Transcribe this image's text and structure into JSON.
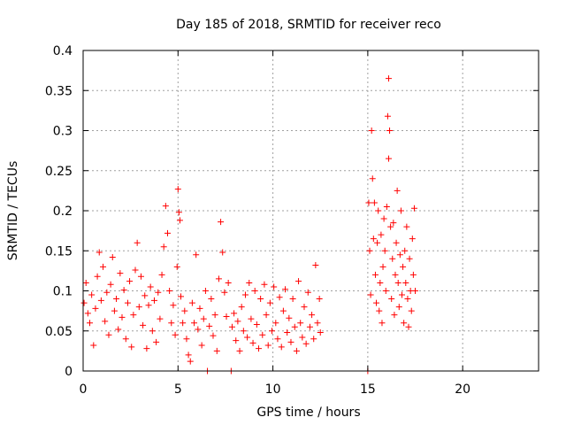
{
  "chart_data": {
    "type": "scatter",
    "title": "Day 185 of 2018, SRMTID for receiver reco",
    "xlabel": "GPS time / hours",
    "ylabel": "SRMTID / TECUs",
    "xlim": [
      0,
      24
    ],
    "ylim": [
      0,
      0.4
    ],
    "xticks": [
      0,
      5,
      10,
      15,
      20
    ],
    "xtick_labels": [
      "0",
      "5",
      "10",
      "15",
      "20"
    ],
    "yticks": [
      0,
      0.05,
      0.1,
      0.15,
      0.2,
      0.25,
      0.3,
      0.35,
      0.4
    ],
    "ytick_labels": [
      "0",
      "0.05",
      "0.1",
      "0.15",
      "0.2",
      "0.25",
      "0.3",
      "0.35",
      "0.4"
    ],
    "grid": true,
    "marker": "+",
    "series_color": "#ff0000",
    "series": [
      {
        "name": "SRMTID",
        "points": [
          [
            0.05,
            0.085
          ],
          [
            0.15,
            0.11
          ],
          [
            0.25,
            0.072
          ],
          [
            0.35,
            0.06
          ],
          [
            0.45,
            0.095
          ],
          [
            0.55,
            0.032
          ],
          [
            0.65,
            0.078
          ],
          [
            0.75,
            0.118
          ],
          [
            0.85,
            0.148
          ],
          [
            0.95,
            0.088
          ],
          [
            1.05,
            0.13
          ],
          [
            1.15,
            0.062
          ],
          [
            1.25,
            0.098
          ],
          [
            1.35,
            0.045
          ],
          [
            1.45,
            0.108
          ],
          [
            1.55,
            0.142
          ],
          [
            1.65,
            0.075
          ],
          [
            1.75,
            0.09
          ],
          [
            1.85,
            0.052
          ],
          [
            1.95,
            0.122
          ],
          [
            2.05,
            0.067
          ],
          [
            2.15,
            0.101
          ],
          [
            2.25,
            0.04
          ],
          [
            2.35,
            0.085
          ],
          [
            2.45,
            0.112
          ],
          [
            2.55,
            0.03
          ],
          [
            2.65,
            0.07
          ],
          [
            2.75,
            0.126
          ],
          [
            2.85,
            0.16
          ],
          [
            2.95,
            0.08
          ],
          [
            3.05,
            0.118
          ],
          [
            3.15,
            0.057
          ],
          [
            3.25,
            0.094
          ],
          [
            3.35,
            0.028
          ],
          [
            3.45,
            0.082
          ],
          [
            3.55,
            0.105
          ],
          [
            3.65,
            0.05
          ],
          [
            3.75,
            0.088
          ],
          [
            3.85,
            0.036
          ],
          [
            3.95,
            0.098
          ],
          [
            4.05,
            0.065
          ],
          [
            4.15,
            0.12
          ],
          [
            4.25,
            0.155
          ],
          [
            4.35,
            0.206
          ],
          [
            4.45,
            0.172
          ],
          [
            4.55,
            0.1
          ],
          [
            4.65,
            0.06
          ],
          [
            4.75,
            0.082
          ],
          [
            4.85,
            0.045
          ],
          [
            4.95,
            0.13
          ],
          [
            5.0,
            0.227
          ],
          [
            5.05,
            0.198
          ],
          [
            5.1,
            0.188
          ],
          [
            5.15,
            0.093
          ],
          [
            5.25,
            0.06
          ],
          [
            5.35,
            0.075
          ],
          [
            5.45,
            0.04
          ],
          [
            5.55,
            0.02
          ],
          [
            5.65,
            0.012
          ],
          [
            5.75,
            0.085
          ],
          [
            5.85,
            0.06
          ],
          [
            5.95,
            0.145
          ],
          [
            6.05,
            0.052
          ],
          [
            6.15,
            0.078
          ],
          [
            6.25,
            0.032
          ],
          [
            6.35,
            0.065
          ],
          [
            6.45,
            0.1
          ],
          [
            6.55,
            0.0
          ],
          [
            6.65,
            0.056
          ],
          [
            6.75,
            0.09
          ],
          [
            6.85,
            0.044
          ],
          [
            6.95,
            0.07
          ],
          [
            7.05,
            0.025
          ],
          [
            7.15,
            0.115
          ],
          [
            7.25,
            0.186
          ],
          [
            7.35,
            0.148
          ],
          [
            7.45,
            0.098
          ],
          [
            7.55,
            0.068
          ],
          [
            7.65,
            0.11
          ],
          [
            7.8,
            0.0
          ],
          [
            7.85,
            0.055
          ],
          [
            7.95,
            0.072
          ],
          [
            8.05,
            0.038
          ],
          [
            8.15,
            0.062
          ],
          [
            8.25,
            0.025
          ],
          [
            8.35,
            0.08
          ],
          [
            8.45,
            0.05
          ],
          [
            8.55,
            0.095
          ],
          [
            8.65,
            0.042
          ],
          [
            8.75,
            0.11
          ],
          [
            8.85,
            0.065
          ],
          [
            8.95,
            0.035
          ],
          [
            9.05,
            0.1
          ],
          [
            9.15,
            0.058
          ],
          [
            9.25,
            0.028
          ],
          [
            9.35,
            0.09
          ],
          [
            9.45,
            0.045
          ],
          [
            9.55,
            0.108
          ],
          [
            9.65,
            0.07
          ],
          [
            9.75,
            0.032
          ],
          [
            9.85,
            0.085
          ],
          [
            9.95,
            0.05
          ],
          [
            10.05,
            0.105
          ],
          [
            10.15,
            0.06
          ],
          [
            10.25,
            0.04
          ],
          [
            10.35,
            0.092
          ],
          [
            10.45,
            0.03
          ],
          [
            10.55,
            0.075
          ],
          [
            10.65,
            0.102
          ],
          [
            10.75,
            0.048
          ],
          [
            10.85,
            0.066
          ],
          [
            10.95,
            0.036
          ],
          [
            11.05,
            0.09
          ],
          [
            11.15,
            0.055
          ],
          [
            11.25,
            0.025
          ],
          [
            11.35,
            0.112
          ],
          [
            11.45,
            0.06
          ],
          [
            11.55,
            0.042
          ],
          [
            11.65,
            0.08
          ],
          [
            11.75,
            0.034
          ],
          [
            11.85,
            0.098
          ],
          [
            11.95,
            0.055
          ],
          [
            12.05,
            0.07
          ],
          [
            12.15,
            0.04
          ],
          [
            12.25,
            0.132
          ],
          [
            12.35,
            0.06
          ],
          [
            12.45,
            0.09
          ],
          [
            12.5,
            0.048
          ],
          [
            15.0,
            0.0
          ],
          [
            15.05,
            0.21
          ],
          [
            15.1,
            0.15
          ],
          [
            15.15,
            0.095
          ],
          [
            15.2,
            0.3
          ],
          [
            15.25,
            0.24
          ],
          [
            15.3,
            0.165
          ],
          [
            15.35,
            0.21
          ],
          [
            15.4,
            0.12
          ],
          [
            15.45,
            0.085
          ],
          [
            15.5,
            0.16
          ],
          [
            15.55,
            0.2
          ],
          [
            15.6,
            0.075
          ],
          [
            15.65,
            0.11
          ],
          [
            15.7,
            0.17
          ],
          [
            15.75,
            0.06
          ],
          [
            15.8,
            0.13
          ],
          [
            15.85,
            0.19
          ],
          [
            15.9,
            0.15
          ],
          [
            15.95,
            0.1
          ],
          [
            16.0,
            0.205
          ],
          [
            16.05,
            0.318
          ],
          [
            16.1,
            0.265
          ],
          [
            16.1,
            0.365
          ],
          [
            16.15,
            0.3
          ],
          [
            16.2,
            0.18
          ],
          [
            16.25,
            0.09
          ],
          [
            16.3,
            0.14
          ],
          [
            16.35,
            0.185
          ],
          [
            16.4,
            0.07
          ],
          [
            16.45,
            0.12
          ],
          [
            16.5,
            0.16
          ],
          [
            16.55,
            0.225
          ],
          [
            16.6,
            0.11
          ],
          [
            16.65,
            0.08
          ],
          [
            16.7,
            0.145
          ],
          [
            16.75,
            0.2
          ],
          [
            16.8,
            0.095
          ],
          [
            16.85,
            0.13
          ],
          [
            16.9,
            0.06
          ],
          [
            16.95,
            0.15
          ],
          [
            17.0,
            0.11
          ],
          [
            17.05,
            0.18
          ],
          [
            17.1,
            0.09
          ],
          [
            17.15,
            0.055
          ],
          [
            17.2,
            0.14
          ],
          [
            17.25,
            0.1
          ],
          [
            17.3,
            0.075
          ],
          [
            17.35,
            0.165
          ],
          [
            17.4,
            0.12
          ],
          [
            17.45,
            0.203
          ],
          [
            17.5,
            0.1
          ]
        ]
      }
    ]
  }
}
